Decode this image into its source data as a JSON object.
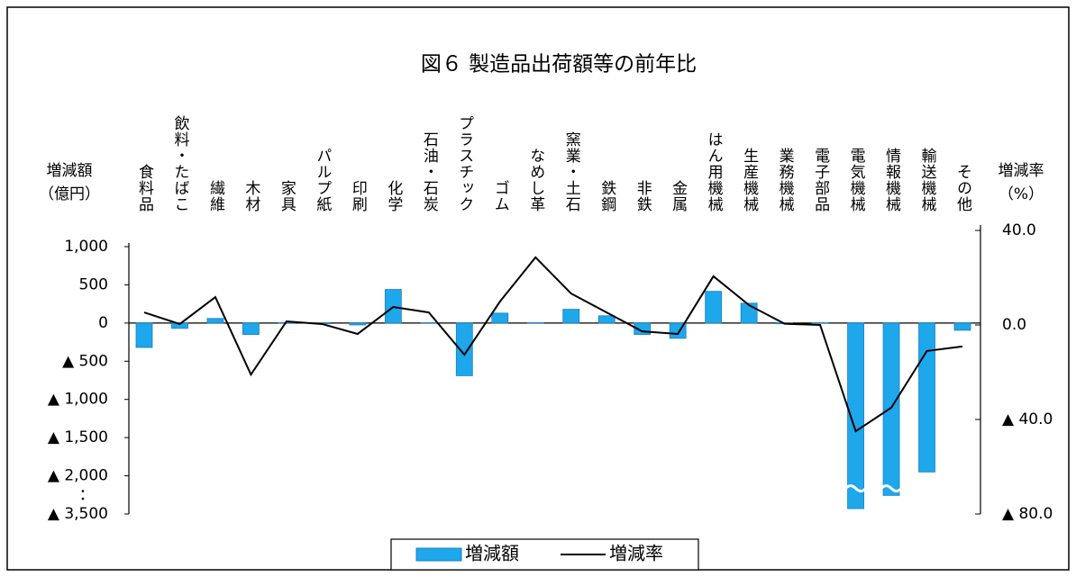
{
  "chart_data": {
    "type": "combo",
    "title": "図６ 製造品出荷額等の前年比",
    "ylabel": "増減額",
    "yunit": "（億円）",
    "y2label": "増減率",
    "y2unit": "（%）",
    "categories": [
      "食料品",
      "飲料・たばこ",
      "繊維",
      "木材",
      "家具",
      "パルプ紙",
      "印刷",
      "化学",
      "石油・石炭",
      "プラスチック",
      "ゴム",
      "なめし革",
      "窯業・土石",
      "鉄鋼",
      "非鉄",
      "金属",
      "はん用機械",
      "生産機械",
      "業務機械",
      "電子部品",
      "電気機械",
      "情報機械",
      "輸送機械",
      "その他"
    ],
    "series": [
      {
        "name": "増減額",
        "type": "bar",
        "color": "#1ea7ea",
        "axis": "y",
        "values": [
          -320,
          -70,
          60,
          -150,
          -5,
          -10,
          -25,
          440,
          -5,
          -690,
          130,
          -5,
          180,
          95,
          -150,
          -200,
          415,
          260,
          -10,
          -5,
          -3290,
          -2770,
          -1950,
          -95
        ]
      },
      {
        "name": "増減率",
        "type": "line",
        "color": "#000000",
        "axis": "y2",
        "values": [
          5.3,
          0.4,
          11.8,
          -21,
          1.5,
          0.4,
          -3.8,
          7.6,
          5.3,
          -12.6,
          9.9,
          28.6,
          13.3,
          5.3,
          -2.7,
          -3.8,
          20.6,
          8.4,
          0.5,
          0,
          -45,
          -35,
          -11,
          -9.1
        ]
      }
    ],
    "ylim": [
      -3500,
      1000
    ],
    "yticks": [
      {
        "value": 1000,
        "label": "1,000"
      },
      500,
      0,
      {
        "value": -500,
        "label": "▲ 500"
      },
      {
        "value": -1000,
        "label": "▲ 1,000"
      },
      {
        "value": -1500,
        "label": "▲ 1,500"
      },
      {
        "value": -2000,
        "label": "▲ 2,000"
      },
      {
        "value": -3500,
        "label": "▲ 3,500"
      }
    ],
    "y_break": [
      -2000,
      -3500
    ],
    "y2lim": [
      -80,
      40
    ],
    "y2ticks": [
      {
        "value": 40,
        "label": "40.0"
      },
      {
        "value": 0,
        "label": "0.0"
      },
      {
        "value": -40,
        "label": "▲ 40.0"
      },
      {
        "value": -80,
        "label": "▲ 80.0"
      }
    ],
    "legend": "bottom"
  }
}
